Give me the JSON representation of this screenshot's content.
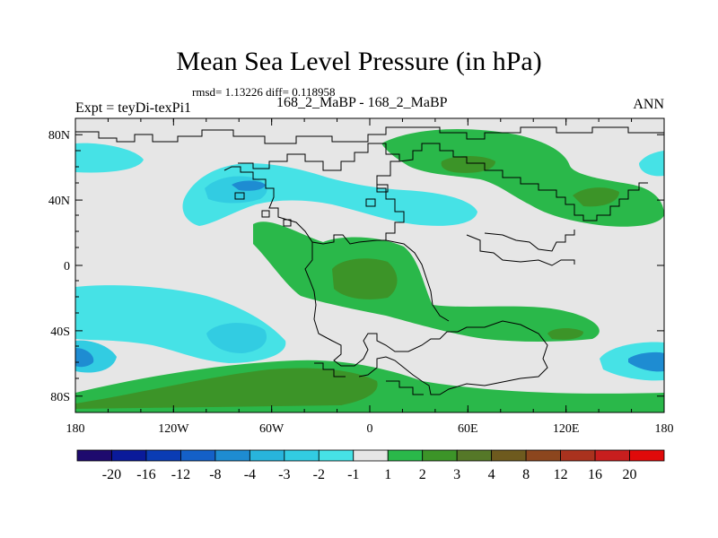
{
  "header": {
    "title": "Mean Sea Level Pressure (in hPa)",
    "subtitle": "rmsd= 1.13226 diff= 0.118958",
    "left_label": "Expt = teyDi-texPi1",
    "center_label": "168_2_MaBP - 168_2_MaBP",
    "right_label": "ANN"
  },
  "map": {
    "lat_labels": [
      "80N",
      "40N",
      "0",
      "40S",
      "80S"
    ],
    "lat_values": [
      80,
      40,
      0,
      -40,
      -80
    ],
    "lon_labels": [
      "180",
      "120W",
      "60W",
      "0",
      "60E",
      "120E",
      "180"
    ],
    "lon_values": [
      -180,
      -120,
      -60,
      0,
      60,
      120,
      180
    ]
  },
  "colorbar": {
    "labels": [
      "-20",
      "-16",
      "-12",
      "-8",
      "-4",
      "-3",
      "-2",
      "-1",
      "1",
      "2",
      "3",
      "4",
      "8",
      "12",
      "16",
      "20"
    ],
    "colors": [
      "#1e0a6e",
      "#0a1a9a",
      "#0a3cb4",
      "#1460c8",
      "#1e8cd2",
      "#28b4dc",
      "#32cce2",
      "#46e2e6",
      "#e6e6e6",
      "#2ab84a",
      "#3c9428",
      "#557828",
      "#6e5a1e",
      "#8c461e",
      "#aa321e",
      "#c81e1e",
      "#e00a0a"
    ]
  },
  "colors": {
    "ocean_neutral": "#e6e6e6",
    "green_light": "#2ab84a",
    "green_mid": "#3c9428",
    "green_dark": "#557828",
    "cyan_light": "#46e2e6",
    "cyan_mid": "#32cce2",
    "blue": "#1e8cd2",
    "blue_dark": "#1460c8"
  }
}
